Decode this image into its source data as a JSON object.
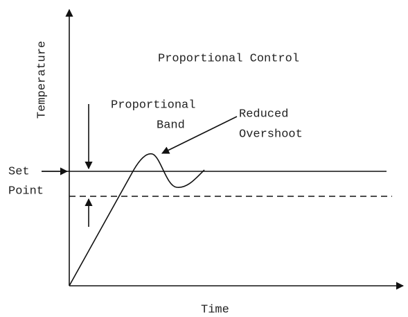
{
  "title": "Proportional Control",
  "y_axis_label": "Temperature",
  "x_axis_label": "Time",
  "set_point": [
    "Set",
    "Point"
  ],
  "proportional_band": [
    "Proportional",
    "Band"
  ],
  "reduced_overshoot": [
    "Reduced",
    "Overshoot"
  ]
}
